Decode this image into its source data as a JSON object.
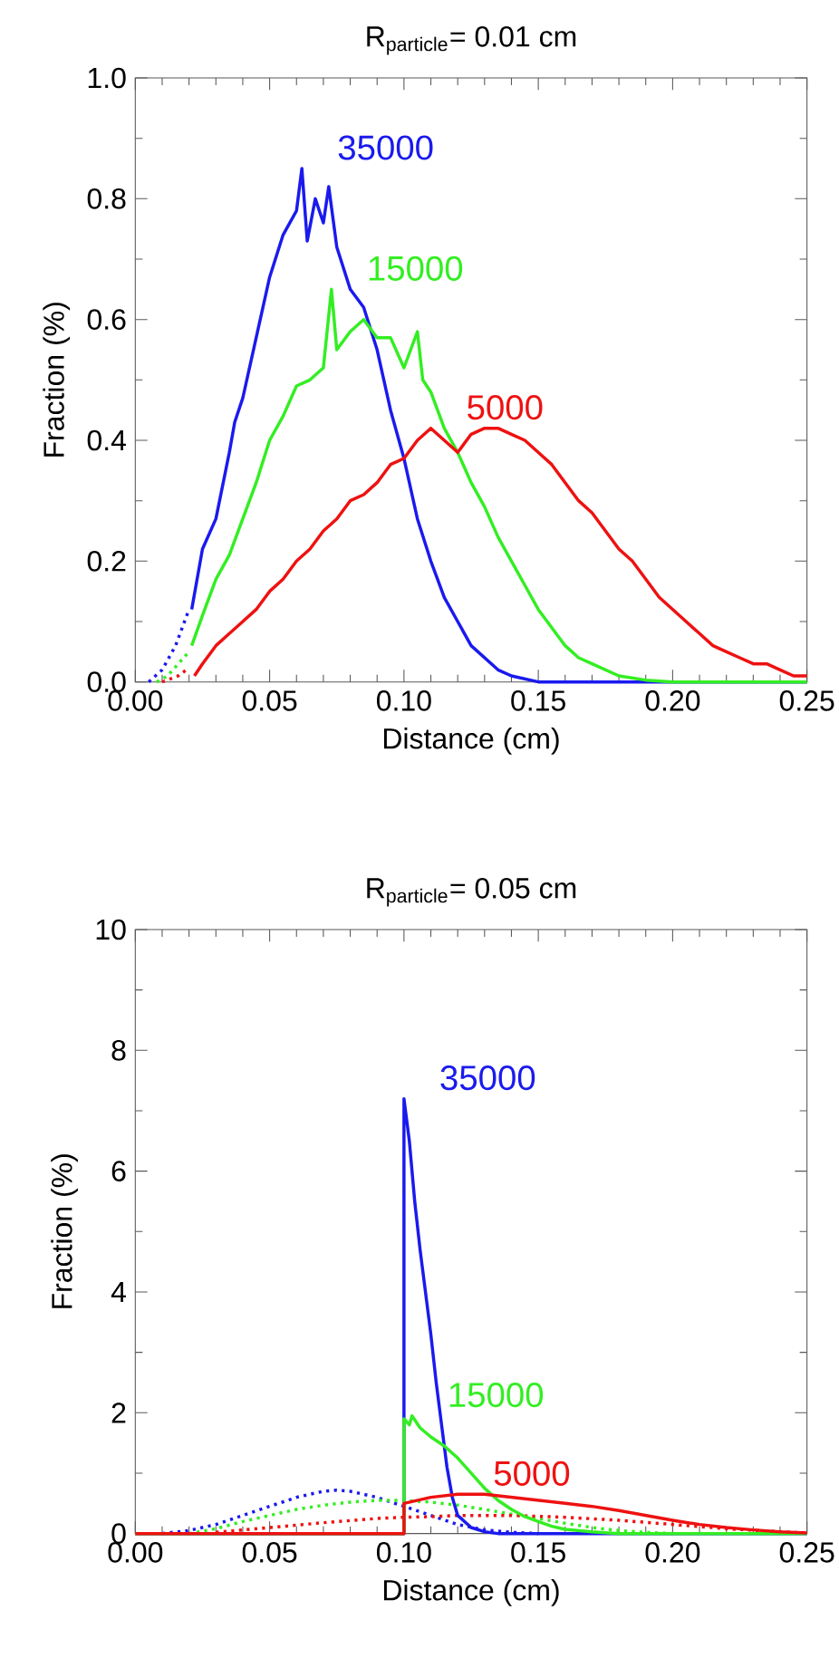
{
  "chart_data": [
    {
      "type": "line",
      "title": "R$_{particle}$= 0.01 cm",
      "xlabel": "Distance (cm)",
      "ylabel": "Fraction (%)",
      "xlim": [
        0,
        0.25
      ],
      "ylim": [
        0,
        1.0
      ],
      "xticks": [
        {
          "value": 0,
          "label": "0.00"
        },
        0.05,
        {
          "value": 0.1,
          "label": "0.10"
        },
        0.15,
        {
          "value": 0.2,
          "label": "0.20"
        },
        0.25
      ],
      "yticks": [
        {
          "value": 0,
          "label": "0.0"
        },
        0.2,
        0.4,
        0.6,
        0.8,
        {
          "value": 1,
          "label": "1.0"
        }
      ],
      "series": [
        {
          "color": "#1a1aee",
          "line_style": "dotted",
          "x": [
            0.005,
            0.01,
            0.015,
            0.02
          ],
          "values": [
            0,
            0.02,
            0.06,
            0.12
          ]
        },
        {
          "color": "#33ee22",
          "line_style": "dotted",
          "x": [
            0.008,
            0.012,
            0.016,
            0.02
          ],
          "values": [
            0,
            0.01,
            0.03,
            0.05
          ]
        },
        {
          "color": "#ee1111",
          "line_style": "dotted",
          "x": [
            0.01,
            0.013,
            0.016,
            0.019
          ],
          "values": [
            0,
            0.005,
            0.01,
            0.02
          ]
        },
        {
          "name": "35000",
          "color": "#1a1aee",
          "line_style": "solid",
          "x": [
            0.021,
            0.025,
            0.03,
            0.035,
            0.037,
            0.04,
            0.045,
            0.05,
            0.055,
            0.06,
            0.062,
            0.064,
            0.067,
            0.07,
            0.072,
            0.075,
            0.08,
            0.085,
            0.09,
            0.095,
            0.1,
            0.105,
            0.11,
            0.115,
            0.12,
            0.125,
            0.13,
            0.135,
            0.14,
            0.145,
            0.15,
            0.25
          ],
          "values": [
            0.12,
            0.22,
            0.27,
            0.38,
            0.43,
            0.47,
            0.57,
            0.67,
            0.74,
            0.78,
            0.85,
            0.73,
            0.8,
            0.76,
            0.82,
            0.72,
            0.65,
            0.62,
            0.55,
            0.45,
            0.37,
            0.27,
            0.2,
            0.14,
            0.1,
            0.06,
            0.04,
            0.02,
            0.01,
            0.005,
            0,
            0
          ]
        },
        {
          "name": "15000",
          "color": "#33ee22",
          "line_style": "solid",
          "x": [
            0.021,
            0.025,
            0.03,
            0.035,
            0.04,
            0.045,
            0.05,
            0.055,
            0.06,
            0.065,
            0.07,
            0.073,
            0.075,
            0.08,
            0.085,
            0.09,
            0.095,
            0.1,
            0.105,
            0.107,
            0.11,
            0.115,
            0.12,
            0.125,
            0.13,
            0.135,
            0.14,
            0.145,
            0.15,
            0.155,
            0.16,
            0.165,
            0.17,
            0.18,
            0.19,
            0.2,
            0.25
          ],
          "values": [
            0.06,
            0.11,
            0.17,
            0.21,
            0.27,
            0.33,
            0.4,
            0.44,
            0.49,
            0.5,
            0.52,
            0.65,
            0.55,
            0.58,
            0.6,
            0.57,
            0.57,
            0.52,
            0.58,
            0.5,
            0.48,
            0.42,
            0.38,
            0.33,
            0.29,
            0.24,
            0.2,
            0.16,
            0.12,
            0.09,
            0.06,
            0.04,
            0.03,
            0.01,
            0.003,
            0,
            0
          ]
        },
        {
          "name": "5000",
          "color": "#ee1111",
          "line_style": "solid",
          "x": [
            0.022,
            0.025,
            0.03,
            0.035,
            0.04,
            0.045,
            0.05,
            0.055,
            0.06,
            0.065,
            0.07,
            0.075,
            0.08,
            0.085,
            0.09,
            0.095,
            0.1,
            0.105,
            0.11,
            0.115,
            0.12,
            0.125,
            0.13,
            0.135,
            0.14,
            0.145,
            0.15,
            0.155,
            0.16,
            0.165,
            0.17,
            0.175,
            0.18,
            0.185,
            0.19,
            0.195,
            0.2,
            0.205,
            0.21,
            0.215,
            0.22,
            0.225,
            0.23,
            0.235,
            0.24,
            0.245,
            0.25
          ],
          "values": [
            0.01,
            0.03,
            0.06,
            0.08,
            0.1,
            0.12,
            0.15,
            0.17,
            0.2,
            0.22,
            0.25,
            0.27,
            0.3,
            0.31,
            0.33,
            0.36,
            0.37,
            0.4,
            0.42,
            0.4,
            0.38,
            0.41,
            0.42,
            0.42,
            0.41,
            0.4,
            0.38,
            0.36,
            0.33,
            0.3,
            0.28,
            0.25,
            0.22,
            0.2,
            0.17,
            0.14,
            0.12,
            0.1,
            0.08,
            0.06,
            0.05,
            0.04,
            0.03,
            0.03,
            0.02,
            0.01,
            0.01
          ]
        }
      ]
    },
    {
      "type": "line",
      "title": "R$_{particle}$= 0.05 cm",
      "xlabel": "Distance (cm)",
      "ylabel": "Fraction (%)",
      "xlim": [
        0,
        0.25
      ],
      "ylim": [
        0,
        10
      ],
      "xticks": [
        {
          "value": 0,
          "label": "0.00"
        },
        0.05,
        {
          "value": 0.1,
          "label": "0.10"
        },
        0.15,
        {
          "value": 0.2,
          "label": "0.20"
        },
        0.25
      ],
      "yticks": [
        0,
        2,
        4,
        6,
        8,
        10
      ],
      "series": [
        {
          "color": "#1a1aee",
          "line_style": "dotted",
          "x": [
            0.01,
            0.02,
            0.03,
            0.04,
            0.05,
            0.06,
            0.07,
            0.075,
            0.08,
            0.09,
            0.1,
            0.11,
            0.12,
            0.13,
            0.14,
            0.15
          ],
          "values": [
            0,
            0.05,
            0.15,
            0.3,
            0.45,
            0.6,
            0.7,
            0.72,
            0.7,
            0.6,
            0.45,
            0.3,
            0.15,
            0.06,
            0.02,
            0
          ]
        },
        {
          "color": "#33ee22",
          "line_style": "dotted",
          "x": [
            0.02,
            0.03,
            0.04,
            0.05,
            0.06,
            0.07,
            0.08,
            0.09,
            0.1,
            0.11,
            0.12,
            0.13,
            0.14,
            0.15,
            0.16,
            0.17,
            0.18,
            0.19,
            0.2
          ],
          "values": [
            0,
            0.08,
            0.2,
            0.3,
            0.4,
            0.47,
            0.52,
            0.55,
            0.55,
            0.52,
            0.47,
            0.4,
            0.32,
            0.25,
            0.17,
            0.1,
            0.05,
            0.02,
            0
          ]
        },
        {
          "color": "#ee1111",
          "line_style": "dotted",
          "x": [
            0.03,
            0.05,
            0.07,
            0.09,
            0.1,
            0.11,
            0.12,
            0.14,
            0.16,
            0.18,
            0.2,
            0.22,
            0.24,
            0.25
          ],
          "values": [
            0.02,
            0.1,
            0.18,
            0.25,
            0.27,
            0.28,
            0.3,
            0.3,
            0.27,
            0.22,
            0.15,
            0.08,
            0.03,
            0.01
          ]
        },
        {
          "name": "35000",
          "color": "#1a1aee",
          "line_style": "solid",
          "x": [
            0,
            0.1,
            0.1,
            0.102,
            0.104,
            0.106,
            0.108,
            0.11,
            0.112,
            0.114,
            0.116,
            0.118,
            0.12,
            0.125,
            0.13,
            0.135,
            0.25
          ],
          "values": [
            0,
            0,
            7.2,
            6.5,
            5.5,
            4.7,
            4.0,
            3.3,
            2.5,
            1.8,
            1.1,
            0.6,
            0.3,
            0.1,
            0.03,
            0,
            0
          ]
        },
        {
          "name": "15000",
          "color": "#33ee22",
          "line_style": "solid",
          "x": [
            0,
            0.1,
            0.1,
            0.102,
            0.103,
            0.106,
            0.11,
            0.115,
            0.12,
            0.125,
            0.13,
            0.135,
            0.14,
            0.145,
            0.15,
            0.155,
            0.16,
            0.17,
            0.18,
            0.25
          ],
          "values": [
            0,
            0,
            1.9,
            1.8,
            1.95,
            1.75,
            1.6,
            1.45,
            1.25,
            1.0,
            0.75,
            0.55,
            0.4,
            0.28,
            0.2,
            0.12,
            0.07,
            0.03,
            0,
            0
          ]
        },
        {
          "name": "5000",
          "color": "#ee1111",
          "line_style": "solid",
          "x": [
            0,
            0.1,
            0.1,
            0.11,
            0.12,
            0.13,
            0.14,
            0.15,
            0.16,
            0.17,
            0.18,
            0.19,
            0.2,
            0.21,
            0.22,
            0.23,
            0.24,
            0.25
          ],
          "values": [
            0,
            0,
            0.5,
            0.6,
            0.65,
            0.65,
            0.6,
            0.55,
            0.5,
            0.45,
            0.38,
            0.3,
            0.22,
            0.15,
            0.1,
            0.06,
            0.03,
            0.01
          ]
        }
      ]
    }
  ]
}
